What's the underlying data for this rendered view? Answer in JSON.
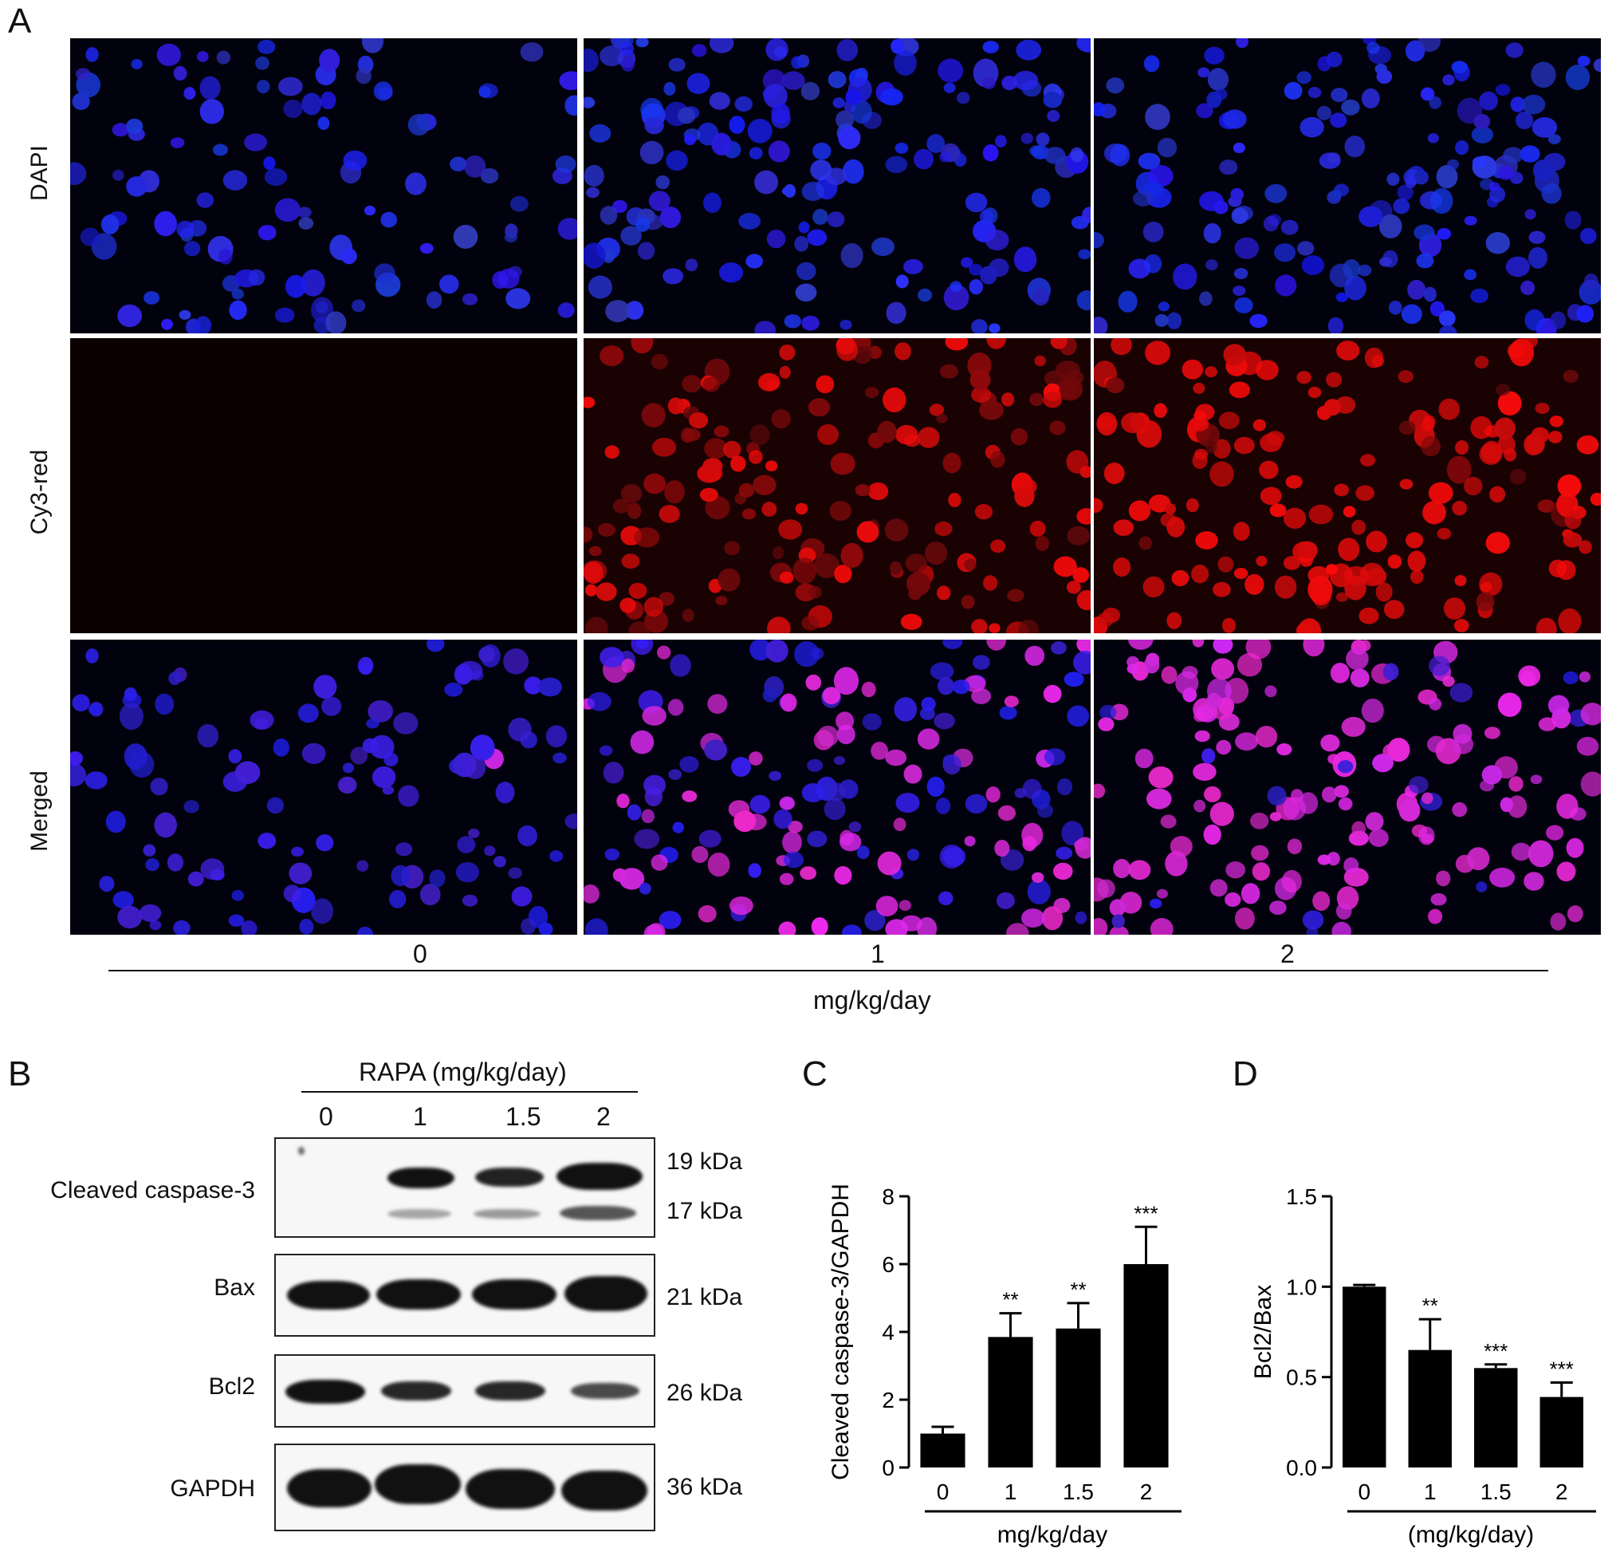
{
  "panel_a": {
    "letter": "A",
    "row_labels": [
      "DAPI",
      "Cy3-red",
      "Merged"
    ],
    "dose_labels": [
      "0",
      "1",
      "2"
    ],
    "dose_unit": "mg/kg/day"
  },
  "panel_b": {
    "letter": "B",
    "header": "RAPA (mg/kg/day)",
    "lanes": [
      "0",
      "1",
      "1.5",
      "2"
    ],
    "proteins": [
      {
        "label": "Cleaved caspase-3",
        "sizes": [
          "19 kDa",
          "17 kDa"
        ]
      },
      {
        "label": "Bax",
        "sizes": [
          "21 kDa"
        ]
      },
      {
        "label": "Bcl2",
        "sizes": [
          "26 kDa"
        ]
      },
      {
        "label": "GAPDH",
        "sizes": [
          "36 kDa"
        ]
      }
    ]
  },
  "panel_c": {
    "letter": "C"
  },
  "panel_d": {
    "letter": "D"
  },
  "chart_data": [
    {
      "type": "bar",
      "categories": [
        "0",
        "1",
        "1.5",
        "2"
      ],
      "values": [
        1.0,
        3.85,
        4.1,
        6.0
      ],
      "errors": [
        0.2,
        0.7,
        0.75,
        1.1
      ],
      "significance": [
        "",
        "**",
        "**",
        "***"
      ],
      "xlabel": "mg/kg/day",
      "ylabel": "Cleaved caspase-3/GAPDH",
      "ylim": [
        0,
        8
      ],
      "yticks": [
        0,
        2,
        4,
        6,
        8
      ],
      "bar_color": "#000000"
    },
    {
      "type": "bar",
      "categories": [
        "0",
        "1",
        "1.5",
        "2"
      ],
      "values": [
        1.0,
        0.65,
        0.55,
        0.39
      ],
      "errors": [
        0.01,
        0.17,
        0.02,
        0.08
      ],
      "significance": [
        "",
        "**",
        "***",
        "***"
      ],
      "xlabel": "(mg/kg/day)",
      "ylabel": "Bcl2/Bax",
      "ylim": [
        0,
        1.5
      ],
      "yticks": [
        "0.0",
        "0.5",
        "1.0",
        "1.5"
      ],
      "bar_color": "#000000"
    }
  ]
}
